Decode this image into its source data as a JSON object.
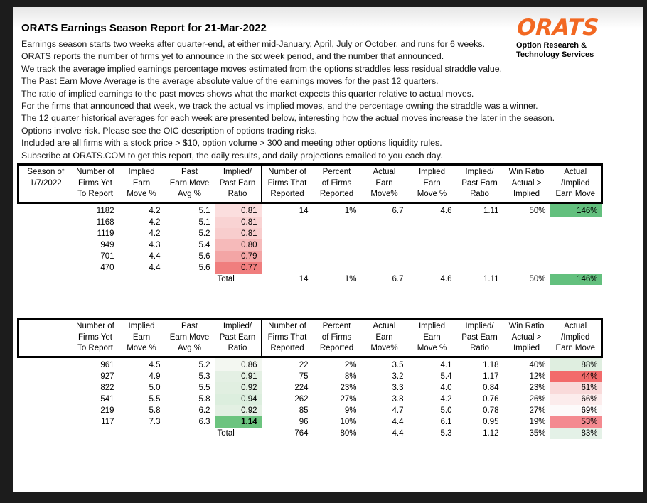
{
  "page": {
    "title": "ORATS Earnings Season Report for 21-Mar-2022",
    "intro_lines": [
      "Earnings season starts two weeks after quarter-end, at either mid-January, April, July or October, and runs for 6 weeks.",
      "ORATS reports the number of firms yet to announce in the six week period, and the number that announced.",
      "We track the average implied earnings percentage moves estimated from the options straddles less residual straddle value.",
      "The Past Earn Move Average is the average absolute value of the earnings moves for the past 12 quarters.",
      "The ratio of implied earnings to the past moves shows what the market expects this quarter relative to actual moves.",
      "For the firms that announced that week, we track the actual vs implied moves, and the percentage owning the straddle was a winner.",
      "The 12 quarter historical averages for each week are presented below, interesting how the actual moves increase the later in the season.",
      "Options involve risk. Please see the OIC description of options trading risks.",
      "Included are all firms with a stock price > $10, option volume > 300 and meeting other options liquidity rules.",
      "Subscribe at ORATS.COM to get this report, the daily results, and daily projections emailed to you each day."
    ]
  },
  "logo": {
    "wordmark": "ORATS",
    "tagline_line1": "Option Research &",
    "tagline_line2": "Technology Services",
    "orange": "#f26822"
  },
  "colors": {
    "strong_green": "#63c07e",
    "strong_red": "#f26b6b",
    "table_border": "#000000"
  },
  "tables": [
    {
      "name": "season-1-7-2022",
      "corner_lines": [
        "Season of",
        "1/7/2022",
        ""
      ],
      "column_headers": [
        [
          "Number of",
          "Firms Yet",
          "To Report"
        ],
        [
          "Implied",
          "Earn",
          "Move %"
        ],
        [
          "Past",
          "Earn Move",
          "Avg %"
        ],
        [
          "Implied/",
          "Past Earn",
          "Ratio"
        ],
        [
          "Number of",
          "Firms That",
          "Reported"
        ],
        [
          "Percent",
          "of Firms",
          "Reported"
        ],
        [
          "Actual",
          "Earn",
          "Move%"
        ],
        [
          "Implied",
          "Earn",
          "Move %"
        ],
        [
          "Implied/",
          "Past Earn",
          "Ratio"
        ],
        [
          "Win Ratio",
          "Actual >",
          "Implied"
        ],
        [
          "Actual",
          "/Implied",
          "Earn Move"
        ]
      ],
      "rows": [
        {
          "cells": [
            "1182",
            "4.2",
            "5.1",
            "0.81",
            "14",
            "1%",
            "6.7",
            "4.6",
            "1.11",
            "50%",
            "146%"
          ],
          "ratio_bg": "#fbdede",
          "last_bg": "#63c07e",
          "bold_ratio": false
        },
        {
          "cells": [
            "1168",
            "4.2",
            "5.1",
            "0.81",
            "",
            "",
            "",
            "",
            "",
            "",
            ""
          ],
          "ratio_bg": "#f9d3d3",
          "last_bg": "",
          "bold_ratio": false
        },
        {
          "cells": [
            "1119",
            "4.2",
            "5.2",
            "0.81",
            "",
            "",
            "",
            "",
            "",
            "",
            ""
          ],
          "ratio_bg": "#f8cdcd",
          "last_bg": "",
          "bold_ratio": false
        },
        {
          "cells": [
            "949",
            "4.3",
            "5.4",
            "0.80",
            "",
            "",
            "",
            "",
            "",
            "",
            ""
          ],
          "ratio_bg": "#f6baba",
          "last_bg": "",
          "bold_ratio": false
        },
        {
          "cells": [
            "701",
            "4.4",
            "5.6",
            "0.79",
            "",
            "",
            "",
            "",
            "",
            "",
            ""
          ],
          "ratio_bg": "#f3a5a5",
          "last_bg": "",
          "bold_ratio": false
        },
        {
          "cells": [
            "470",
            "4.4",
            "5.6",
            "0.77",
            "",
            "",
            "",
            "",
            "",
            "",
            ""
          ],
          "ratio_bg": "#f07e7e",
          "last_bg": "",
          "bold_ratio": false
        }
      ],
      "total": {
        "label": "Total",
        "cells": [
          "14",
          "1%",
          "6.7",
          "4.6",
          "1.11",
          "50%",
          "146%"
        ],
        "last_bg": "#63c07e"
      }
    },
    {
      "name": "current-season",
      "corner_lines": [
        "",
        "",
        ""
      ],
      "column_headers": [
        [
          "Number of",
          "Firms Yet",
          "To Report"
        ],
        [
          "Implied",
          "Earn",
          "Move %"
        ],
        [
          "Past",
          "Earn Move",
          "Avg %"
        ],
        [
          "Implied/",
          "Past Earn",
          "Ratio"
        ],
        [
          "Number of",
          "Firms That",
          "Reported"
        ],
        [
          "Percent",
          "of Firms",
          "Reported"
        ],
        [
          "Actual",
          "Earn",
          "Move%"
        ],
        [
          "Implied",
          "Earn",
          "Move %"
        ],
        [
          "Implied/",
          "Past Earn",
          "Ratio"
        ],
        [
          "Win Ratio",
          "Actual >",
          "Implied"
        ],
        [
          "Actual",
          "/Implied",
          "Earn Move"
        ]
      ],
      "rows": [
        {
          "cells": [
            "961",
            "4.5",
            "5.2",
            "0.86",
            "22",
            "2%",
            "3.5",
            "4.1",
            "1.18",
            "40%",
            "88%"
          ],
          "ratio_bg": "#f3f7f1",
          "last_bg": "#dfeee0",
          "bold_ratio": false
        },
        {
          "cells": [
            "927",
            "4.9",
            "5.3",
            "0.91",
            "75",
            "8%",
            "3.2",
            "5.4",
            "1.17",
            "12%",
            "44%"
          ],
          "ratio_bg": "#e4f0e4",
          "last_bg": "#f26b6b",
          "bold_ratio": false
        },
        {
          "cells": [
            "822",
            "5.0",
            "5.5",
            "0.92",
            "224",
            "23%",
            "3.3",
            "4.0",
            "0.84",
            "23%",
            "61%"
          ],
          "ratio_bg": "#e1efe1",
          "last_bg": "#f9dada",
          "bold_ratio": false
        },
        {
          "cells": [
            "541",
            "5.5",
            "5.8",
            "0.94",
            "262",
            "27%",
            "3.8",
            "4.2",
            "0.76",
            "26%",
            "66%"
          ],
          "ratio_bg": "#dceede",
          "last_bg": "#fcecec",
          "bold_ratio": false
        },
        {
          "cells": [
            "219",
            "5.8",
            "6.2",
            "0.92",
            "85",
            "9%",
            "4.7",
            "5.0",
            "0.78",
            "27%",
            "69%"
          ],
          "ratio_bg": "#e3f0e3",
          "last_bg": "#fdfafa",
          "bold_ratio": false
        },
        {
          "cells": [
            "117",
            "7.3",
            "6.3",
            "1.14",
            "96",
            "10%",
            "4.4",
            "6.1",
            "0.95",
            "19%",
            "53%"
          ],
          "ratio_bg": "#6cc47f",
          "last_bg": "#f48a90",
          "bold_ratio": true
        }
      ],
      "total": {
        "label": "Total",
        "cells": [
          "764",
          "80%",
          "4.4",
          "5.3",
          "1.12",
          "35%",
          "83%"
        ],
        "last_bg": "#e4f1e7"
      }
    }
  ]
}
